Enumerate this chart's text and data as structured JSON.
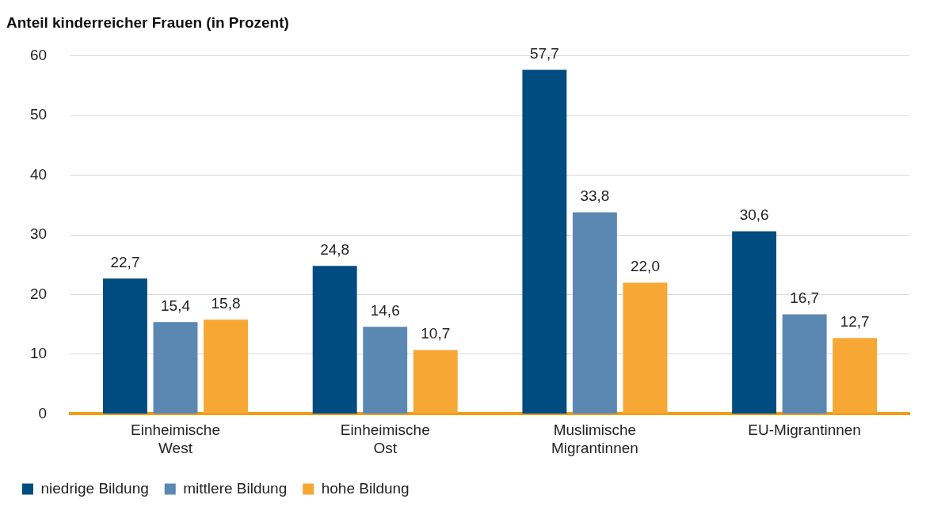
{
  "chart_data": {
    "type": "bar",
    "title": "Anteil kinderreicher Frauen (in Prozent)",
    "categories": [
      "Einheimische West",
      "Einheimische Ost",
      "Muslimische Migrantinnen",
      "EU-Migrantinnen"
    ],
    "series": [
      {
        "name": "niedrige Bildung",
        "color": "#004c80",
        "values": [
          22.7,
          24.8,
          57.7,
          30.6
        ]
      },
      {
        "name": "mittlere Bildung",
        "color": "#5b88b2",
        "values": [
          15.4,
          14.6,
          33.8,
          16.7
        ]
      },
      {
        "name": "hohe Bildung",
        "color": "#f7a734",
        "values": [
          15.8,
          10.7,
          22.0,
          12.7
        ]
      }
    ],
    "value_labels": [
      [
        "22,7",
        "24,8",
        "57,7",
        "30,6"
      ],
      [
        "15,4",
        "14,6",
        "33,8",
        "16,7"
      ],
      [
        "15,8",
        "10,7",
        "22,0",
        "12,7"
      ]
    ],
    "ylim": [
      0,
      60
    ],
    "yticks": [
      0,
      10,
      20,
      30,
      40,
      50,
      60
    ],
    "grid": "y",
    "legend": "bottom left"
  }
}
